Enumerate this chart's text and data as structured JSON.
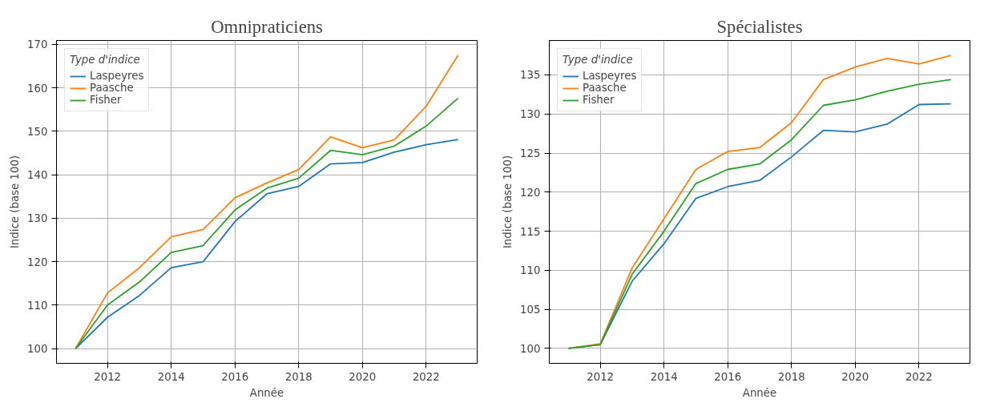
{
  "chart_data": [
    {
      "type": "line",
      "title": "Omnipraticiens",
      "xlabel": "Année",
      "ylabel": "Indice (base 100)",
      "legend_title": "Type d'indice",
      "legend": "top left",
      "grid": true,
      "x": [
        2011,
        2012,
        2013,
        2014,
        2015,
        2016,
        2017,
        2018,
        2019,
        2020,
        2021,
        2022,
        2023
      ],
      "series": [
        {
          "name": "Laspeyres",
          "color": "#1f77b4",
          "values": [
            100,
            107.2,
            112.2,
            118.6,
            120,
            129.2,
            135.6,
            137.3,
            142.5,
            142.8,
            145.2,
            146.9,
            148.1
          ]
        },
        {
          "name": "Paasche",
          "color": "#ff7f0e",
          "values": [
            100,
            112.8,
            118.6,
            125.7,
            127.4,
            134.7,
            138.1,
            141.2,
            148.7,
            146.2,
            148,
            155.8,
            167.5
          ]
        },
        {
          "name": "Fisher",
          "color": "#2ca02c",
          "values": [
            100,
            110,
            115.3,
            122.1,
            123.7,
            131.9,
            136.9,
            139.2,
            145.6,
            144.6,
            146.6,
            151.2,
            157.6
          ]
        }
      ],
      "xlim": [
        2010.4,
        2023.6
      ],
      "ylim": [
        96.6,
        170.9
      ],
      "xticks": [
        2012,
        2014,
        2016,
        2018,
        2020,
        2022
      ],
      "yticks": [
        100,
        110,
        120,
        130,
        140,
        150,
        160,
        170
      ]
    },
    {
      "type": "line",
      "title": "Spécialistes",
      "xlabel": "Année",
      "ylabel": "Indice (base 100)",
      "legend_title": "Type d'indice",
      "legend": "top left",
      "grid": true,
      "x": [
        2011,
        2012,
        2013,
        2014,
        2015,
        2016,
        2017,
        2018,
        2019,
        2020,
        2021,
        2022,
        2023
      ],
      "series": [
        {
          "name": "Laspeyres",
          "color": "#1f77b4",
          "values": [
            100,
            100.5,
            108.6,
            113.4,
            119.2,
            120.7,
            121.5,
            124.5,
            127.9,
            127.7,
            128.7,
            131.2,
            131.3
          ]
        },
        {
          "name": "Paasche",
          "color": "#ff7f0e",
          "values": [
            100,
            100.6,
            110.3,
            116.6,
            122.9,
            125.2,
            125.7,
            128.9,
            134.4,
            136,
            137.1,
            136.4,
            137.5
          ]
        },
        {
          "name": "Fisher",
          "color": "#2ca02c",
          "values": [
            100,
            100.5,
            109.5,
            115,
            121.1,
            122.9,
            123.6,
            126.7,
            131.1,
            131.8,
            132.9,
            133.8,
            134.4
          ]
        }
      ],
      "xlim": [
        2010.4,
        2023.6
      ],
      "ylim": [
        98.1,
        139.4
      ],
      "xticks": [
        2012,
        2014,
        2016,
        2018,
        2020,
        2022
      ],
      "yticks": [
        100,
        105,
        110,
        115,
        120,
        125,
        130,
        135
      ]
    }
  ]
}
